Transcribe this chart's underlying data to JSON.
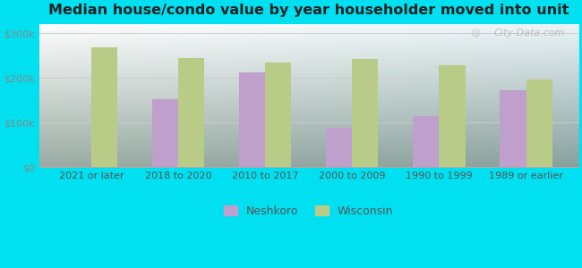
{
  "title": "Median house/condo value by year householder moved into unit",
  "categories": [
    "2021 or later",
    "2018 to 2020",
    "2010 to 2017",
    "2000 to 2009",
    "1990 to 1999",
    "1989 or earlier"
  ],
  "neshkoro": [
    null,
    152000,
    212000,
    88000,
    115000,
    172000
  ],
  "wisconsin": [
    268000,
    245000,
    235000,
    243000,
    228000,
    197000
  ],
  "neshkoro_color": "#bf9fcc",
  "wisconsin_color": "#b8cc88",
  "background_outer": "#00e0f0",
  "ylabel_color": "#888888",
  "title_color": "#222222",
  "yticks": [
    0,
    100000,
    200000,
    300000
  ],
  "ytick_labels": [
    "$0",
    "$100k",
    "$200k",
    "$300k"
  ],
  "ylim": [
    0,
    320000
  ],
  "bar_width": 0.3,
  "watermark": "City-Data.com",
  "legend_labels": [
    "Neshkoro",
    "Wisconsin"
  ]
}
